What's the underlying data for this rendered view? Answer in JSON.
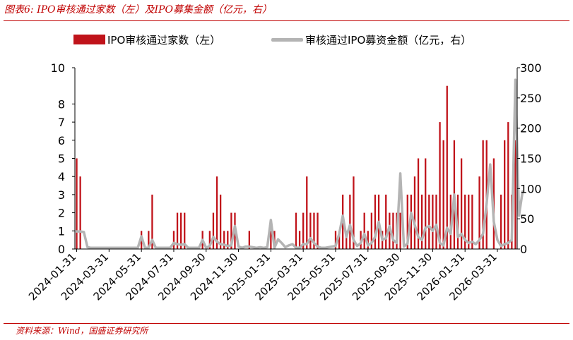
{
  "figure": {
    "title": "图表6:  IPO审核通过家数（左）及IPO募集金额（亿元，右）",
    "source": "资料来源：Wind，国盛证券研究所"
  },
  "colors": {
    "accent": "#c00000",
    "bars": "#c0131a",
    "line": "#b4b4b4",
    "axis": "#000000"
  },
  "chart_data": {
    "type": "bar+line",
    "legend_position": "top",
    "grid": false,
    "x_tick_labels": [
      "2024-01-31",
      "2024-03-31",
      "2024-05-31",
      "2024-07-31",
      "2024-09-30",
      "2024-11-30",
      "2025-01-31",
      "2025-03-31",
      "2025-05-31",
      "2025-07-31",
      "2025-09-30",
      "2025-11-30",
      "2026-01-31",
      "2026-03-31"
    ],
    "x_tick_index": [
      0,
      9,
      18,
      27,
      36,
      45,
      54,
      63,
      72,
      81,
      90,
      99,
      108,
      117
    ],
    "y_left": {
      "lim": [
        0,
        10
      ],
      "ticks": [
        0,
        1,
        2,
        3,
        4,
        5,
        6,
        7,
        8,
        10
      ]
    },
    "y_right": {
      "lim": [
        0,
        300
      ],
      "ticks": [
        0,
        50,
        100,
        150,
        200,
        250,
        300
      ]
    },
    "series": [
      {
        "name": "IPO审核通过家数（左）",
        "kind": "bar",
        "axis": "left",
        "values": [
          5,
          4,
          0,
          0,
          0,
          0,
          0,
          0,
          0,
          0,
          0,
          0,
          0,
          0,
          0,
          0,
          0,
          0,
          1,
          0,
          1,
          3,
          0,
          0,
          0,
          0,
          0,
          1,
          2,
          2,
          2,
          0,
          0,
          0,
          0,
          1,
          0,
          1,
          2,
          4,
          3,
          1,
          1,
          2,
          2,
          0,
          0,
          0,
          1,
          0,
          0,
          0,
          0,
          0,
          1,
          1,
          0,
          0,
          0,
          0,
          0,
          2,
          1,
          2,
          4,
          2,
          2,
          2,
          0,
          0,
          0,
          0,
          1,
          1,
          3,
          1,
          3,
          4,
          0,
          1,
          2,
          1,
          2,
          3,
          3,
          1,
          3,
          2,
          2,
          2,
          2,
          0,
          3,
          3,
          4,
          5,
          3,
          5,
          3,
          3,
          3,
          7,
          6,
          9,
          3,
          6,
          3,
          5,
          3,
          3,
          3,
          0,
          4,
          6,
          6,
          0,
          5,
          0,
          3,
          6,
          7,
          3,
          6
        ],
        "x_format": "index of approx. weekly periods from 2024-01-31"
      },
      {
        "name": "审核通过IPO募资金额（亿元，右）",
        "kind": "line",
        "axis": "right",
        "values": [
          29,
          29,
          28,
          3,
          2,
          2,
          2,
          2,
          2,
          2,
          2,
          2,
          2,
          2,
          2,
          2,
          2,
          2,
          21,
          2,
          2,
          15,
          2,
          2,
          2,
          2,
          2,
          10,
          8,
          7,
          8,
          2,
          2,
          2,
          2,
          15,
          2,
          5,
          20,
          12,
          8,
          7,
          5,
          6,
          38,
          4,
          2,
          4,
          4,
          3,
          2,
          3,
          2,
          3,
          48,
          2,
          16,
          10,
          3,
          6,
          8,
          2,
          2,
          8,
          8,
          18,
          10,
          4,
          2,
          2,
          3,
          4,
          5,
          25,
          55,
          20,
          40,
          15,
          5,
          10,
          25,
          6,
          10,
          20,
          45,
          15,
          18,
          38,
          15,
          10,
          125,
          4,
          9,
          60,
          40,
          20,
          15,
          35,
          38,
          30,
          40,
          10,
          6,
          35,
          25,
          90,
          20,
          25,
          15,
          10,
          12,
          8,
          15,
          25,
          75,
          140,
          45,
          15,
          5,
          8,
          10,
          15,
          280,
          55,
          95
        ]
      }
    ]
  }
}
